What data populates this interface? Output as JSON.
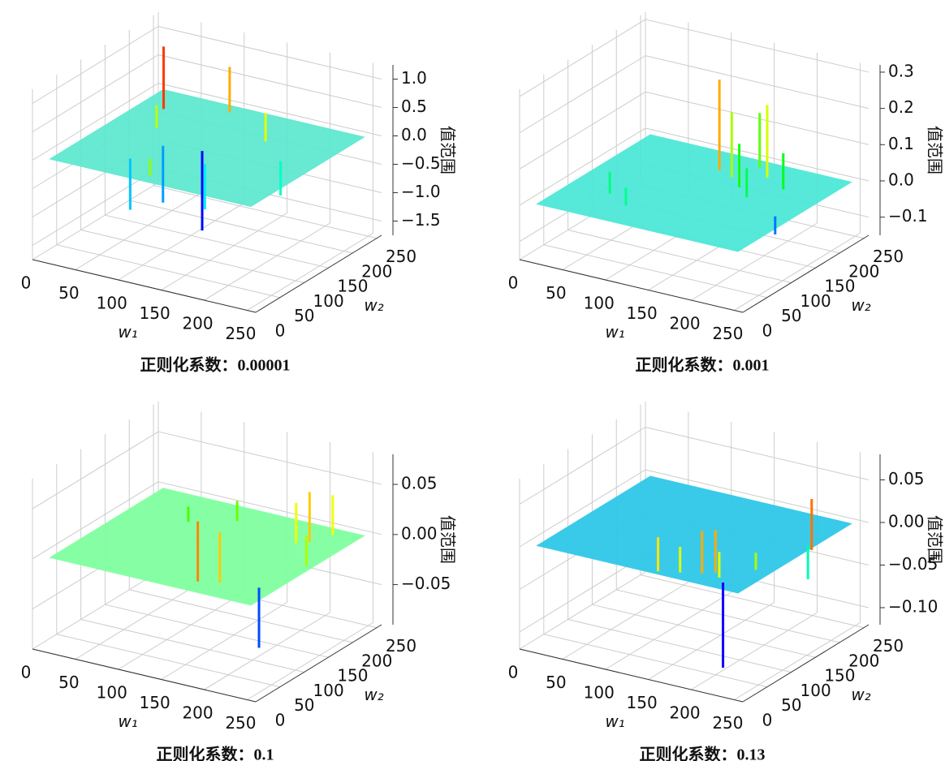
{
  "chart_data": [
    {
      "type": "surface",
      "xlabel": "w₁",
      "ylabel": "w₂",
      "zlabel": "值范围",
      "caption": "正则化系数：0.00001",
      "xlim": [
        0,
        260
      ],
      "ylim": [
        0,
        260
      ],
      "zlim": [
        -1.75,
        1.25
      ],
      "xticks": [
        0,
        50,
        100,
        150,
        200,
        250
      ],
      "yticks": [
        0,
        50,
        100,
        150,
        200,
        250
      ],
      "zticks": [
        {
          "value": -1.5,
          "label": "−1.5"
        },
        {
          "value": -1.0,
          "label": "−1.0"
        },
        {
          "value": -0.5,
          "label": "−0.5"
        },
        {
          "value": 0,
          "label": "0.0"
        },
        0.5,
        {
          "value": 1.0,
          "label": "1.0"
        }
      ],
      "surface_color": "#5fe8d0",
      "colormap": "rainbow",
      "x": [
        40,
        60,
        100,
        130,
        80,
        170,
        150,
        210,
        120,
        90
      ],
      "y": [
        200,
        150,
        230,
        120,
        60,
        180,
        90,
        140,
        30,
        110
      ],
      "z": [
        1.1,
        0.4,
        0.8,
        -1.4,
        -0.9,
        0.5,
        -0.8,
        -0.6,
        0.3,
        -1.0
      ]
    },
    {
      "type": "surface",
      "xlabel": "w₁",
      "ylabel": "w₂",
      "zlabel": "值范围",
      "caption": "正则化系数：0.001",
      "xlim": [
        0,
        260
      ],
      "ylim": [
        0,
        260
      ],
      "zlim": [
        -0.15,
        0.32
      ],
      "xticks": [
        0,
        50,
        100,
        150,
        200,
        250
      ],
      "yticks": [
        0,
        50,
        100,
        150,
        200,
        250
      ],
      "zticks": [
        {
          "value": -0.1,
          "label": "−0.1"
        },
        {
          "value": 0,
          "label": "0.0"
        },
        0.1,
        0.2,
        0.3
      ],
      "surface_color": "#4de8d8",
      "colormap": "rainbow",
      "x": [
        120,
        140,
        150,
        160,
        170,
        180,
        60,
        90,
        200,
        230
      ],
      "y": [
        200,
        190,
        230,
        170,
        210,
        150,
        80,
        60,
        190,
        120
      ],
      "z": [
        0.25,
        0.18,
        0.15,
        0.12,
        0.2,
        0.08,
        0.06,
        0.05,
        0.1,
        -0.05
      ]
    },
    {
      "type": "surface",
      "xlabel": "w₁",
      "ylabel": "w₂",
      "zlabel": "值范围",
      "caption": "正则化系数：0.1",
      "xlim": [
        0,
        260
      ],
      "ylim": [
        0,
        260
      ],
      "zlim": [
        -0.09,
        0.08
      ],
      "xticks": [
        0,
        50,
        100,
        150,
        200,
        250
      ],
      "yticks": [
        0,
        50,
        100,
        150,
        200,
        250
      ],
      "zticks": [
        {
          "value": -0.05,
          "label": "−0.05"
        },
        {
          "value": 0,
          "label": "0.00"
        },
        0.05
      ],
      "surface_color": "#80ffa0",
      "colormap": "rainbow",
      "x": [
        170,
        190,
        200,
        210,
        220,
        240,
        80,
        120,
        230
      ],
      "y": [
        40,
        50,
        190,
        200,
        230,
        140,
        180,
        210,
        60
      ],
      "z": [
        0.06,
        0.05,
        0.04,
        0.05,
        0.04,
        0.03,
        0.015,
        0.02,
        -0.06
      ]
    },
    {
      "type": "surface",
      "xlabel": "w₁",
      "ylabel": "w₂",
      "zlabel": "值范围",
      "caption": "正则化系数：0.13",
      "xlim": [
        0,
        260
      ],
      "ylim": [
        0,
        260
      ],
      "zlim": [
        -0.12,
        0.08
      ],
      "xticks": [
        0,
        50,
        100,
        150,
        200,
        250
      ],
      "yticks": [
        0,
        50,
        100,
        150,
        200,
        250
      ],
      "zticks": [
        {
          "value": -0.1,
          "label": "−0.10"
        },
        {
          "value": -0.05,
          "label": "−0.05"
        },
        {
          "value": 0,
          "label": "0.00"
        },
        0.05
      ],
      "surface_color": "#30c8e8",
      "colormap": "rainbow",
      "x": [
        150,
        170,
        190,
        200,
        210,
        230,
        250,
        240,
        220
      ],
      "y": [
        20,
        30,
        40,
        50,
        40,
        80,
        160,
        170,
        30
      ],
      "z": [
        0.04,
        0.03,
        0.05,
        0.05,
        0.03,
        0.02,
        0.06,
        -0.04,
        -0.1
      ]
    }
  ]
}
